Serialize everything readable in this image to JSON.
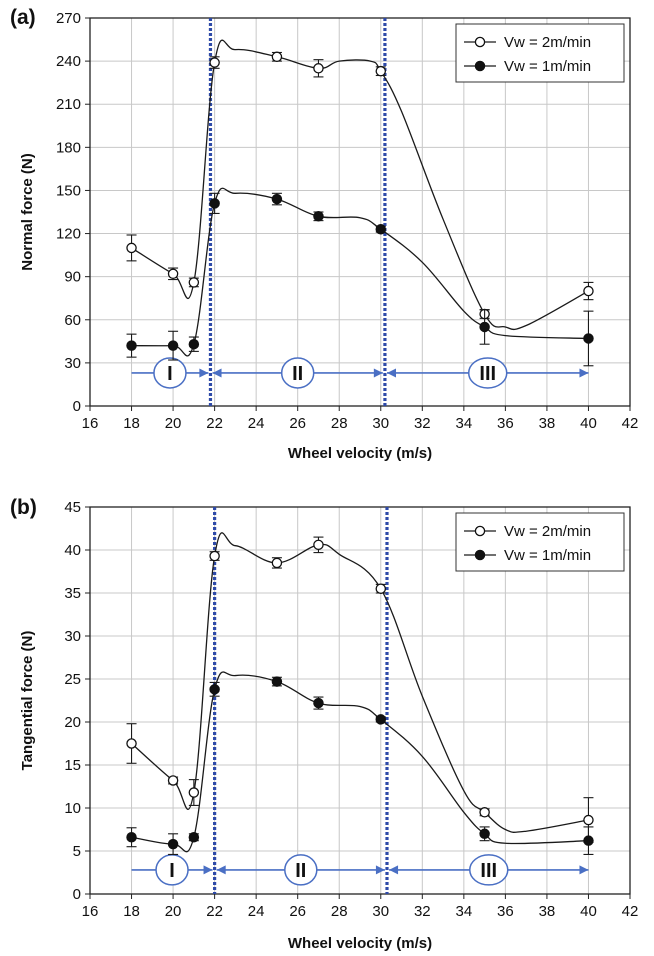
{
  "chart_data": [
    {
      "type": "line",
      "panel_label": "(a)",
      "xlabel": "Wheel velocity (m/s)",
      "ylabel": "Normal force (N)",
      "xlim": [
        16,
        42
      ],
      "ylim": [
        0,
        270
      ],
      "xticks": [
        16,
        18,
        20,
        22,
        24,
        26,
        28,
        30,
        32,
        34,
        36,
        38,
        40,
        42
      ],
      "yticks": [
        0,
        30,
        60,
        90,
        120,
        150,
        180,
        210,
        240,
        270
      ],
      "grid": true,
      "legend_position": "top-right",
      "series": [
        {
          "name": "Vw = 2m/min",
          "marker": "open-circle",
          "points": [
            {
              "x": 18,
              "y": 110,
              "err": 9
            },
            {
              "x": 20,
              "y": 92,
              "err": 4
            },
            {
              "x": 21,
              "y": 86,
              "err": 3
            },
            {
              "x": 22,
              "y": 239,
              "err": 4
            },
            {
              "x": 25,
              "y": 243,
              "err": 3
            },
            {
              "x": 27,
              "y": 235,
              "err": 6
            },
            {
              "x": 30,
              "y": 233,
              "err": 3
            },
            {
              "x": 35,
              "y": 64,
              "err": 3
            },
            {
              "x": 40,
              "y": 80,
              "err": 6
            }
          ],
          "curve": [
            [
              18,
              110
            ],
            [
              20,
              92
            ],
            [
              21,
              86
            ],
            [
              22,
              239
            ],
            [
              23,
              248
            ],
            [
              25,
              243
            ],
            [
              27,
              235
            ],
            [
              28,
              240
            ],
            [
              29.5,
              240
            ],
            [
              30,
              233
            ],
            [
              31,
              205
            ],
            [
              33,
              130
            ],
            [
              35,
              64
            ],
            [
              36,
              55
            ],
            [
              37,
              56
            ],
            [
              40,
              80
            ]
          ]
        },
        {
          "name": "Vw = 1m/min",
          "marker": "filled-circle",
          "points": [
            {
              "x": 18,
              "y": 42,
              "err": 8
            },
            {
              "x": 20,
              "y": 42,
              "err": 10
            },
            {
              "x": 21,
              "y": 43,
              "err": 5
            },
            {
              "x": 22,
              "y": 141,
              "err": 7
            },
            {
              "x": 25,
              "y": 144,
              "err": 4
            },
            {
              "x": 27,
              "y": 132,
              "err": 3
            },
            {
              "x": 30,
              "y": 123,
              "err": 2
            },
            {
              "x": 35,
              "y": 55,
              "err": 12
            },
            {
              "x": 40,
              "y": 47,
              "err": 19
            }
          ],
          "curve": [
            [
              18,
              42
            ],
            [
              20,
              42
            ],
            [
              21,
              43
            ],
            [
              22,
              141
            ],
            [
              23,
              148
            ],
            [
              25,
              144
            ],
            [
              27,
              132
            ],
            [
              29,
              131
            ],
            [
              30,
              123
            ],
            [
              32,
              100
            ],
            [
              34,
              66
            ],
            [
              35,
              55
            ],
            [
              36,
              49
            ],
            [
              40,
              47
            ]
          ]
        }
      ],
      "vlines": [
        21.8,
        30.2
      ],
      "regions": [
        {
          "label": "I",
          "x_start": 18,
          "x_end": 21.7
        },
        {
          "label": "II",
          "x_start": 21.9,
          "x_end": 30.1
        },
        {
          "label": "III",
          "x_start": 30.3,
          "x_end": 40
        }
      ],
      "region_arrow_y": 23
    },
    {
      "type": "line",
      "panel_label": "(b)",
      "xlabel": "Wheel velocity (m/s)",
      "ylabel": "Tangential force (N)",
      "xlim": [
        16,
        42
      ],
      "ylim": [
        0,
        45
      ],
      "xticks": [
        16,
        18,
        20,
        22,
        24,
        26,
        28,
        30,
        32,
        34,
        36,
        38,
        40,
        42
      ],
      "yticks": [
        0,
        5,
        10,
        15,
        20,
        25,
        30,
        35,
        40,
        45
      ],
      "grid": true,
      "legend_position": "top-right",
      "series": [
        {
          "name": "Vw = 2m/min",
          "marker": "open-circle",
          "points": [
            {
              "x": 18,
              "y": 17.5,
              "err": 2.3
            },
            {
              "x": 20,
              "y": 13.2,
              "err": 0.4
            },
            {
              "x": 21,
              "y": 11.8,
              "err": 1.5
            },
            {
              "x": 22,
              "y": 39.3,
              "err": 0.5
            },
            {
              "x": 25,
              "y": 38.5,
              "err": 0.6
            },
            {
              "x": 27,
              "y": 40.6,
              "err": 0.9
            },
            {
              "x": 30,
              "y": 35.5,
              "err": 0.5
            },
            {
              "x": 35,
              "y": 9.5,
              "err": 0.4
            },
            {
              "x": 40,
              "y": 8.6,
              "err": 2.6
            }
          ],
          "curve": [
            [
              18,
              17.5
            ],
            [
              20,
              13.2
            ],
            [
              21,
              11.8
            ],
            [
              22,
              39.3
            ],
            [
              23,
              40.5
            ],
            [
              25,
              38.5
            ],
            [
              27,
              40.6
            ],
            [
              28,
              39.5
            ],
            [
              30,
              35.5
            ],
            [
              32,
              23
            ],
            [
              34,
              12
            ],
            [
              35,
              9.5
            ],
            [
              36,
              7.5
            ],
            [
              37,
              7.3
            ],
            [
              40,
              8.6
            ]
          ]
        },
        {
          "name": "Vw = 1m/min",
          "marker": "filled-circle",
          "points": [
            {
              "x": 18,
              "y": 6.6,
              "err": 1.1
            },
            {
              "x": 20,
              "y": 5.8,
              "err": 1.2
            },
            {
              "x": 21,
              "y": 6.6,
              "err": 0.4
            },
            {
              "x": 22,
              "y": 23.8,
              "err": 0.8
            },
            {
              "x": 25,
              "y": 24.7,
              "err": 0.5
            },
            {
              "x": 27,
              "y": 22.2,
              "err": 0.7
            },
            {
              "x": 30,
              "y": 20.3,
              "err": 0.3
            },
            {
              "x": 35,
              "y": 7.0,
              "err": 0.8
            },
            {
              "x": 40,
              "y": 6.2,
              "err": 1.6
            }
          ],
          "curve": [
            [
              18,
              6.6
            ],
            [
              20,
              5.8
            ],
            [
              21,
              6.6
            ],
            [
              22,
              23.8
            ],
            [
              23,
              25.4
            ],
            [
              25,
              24.7
            ],
            [
              27,
              22.2
            ],
            [
              29,
              21.8
            ],
            [
              30,
              20.3
            ],
            [
              32,
              16
            ],
            [
              34,
              9.5
            ],
            [
              35,
              7.0
            ],
            [
              36,
              5.9
            ],
            [
              40,
              6.2
            ]
          ]
        }
      ],
      "vlines": [
        22.0,
        30.3
      ],
      "regions": [
        {
          "label": "I",
          "x_start": 18,
          "x_end": 21.9
        },
        {
          "label": "II",
          "x_start": 22.1,
          "x_end": 30.2
        },
        {
          "label": "III",
          "x_start": 30.4,
          "x_end": 40
        }
      ],
      "region_arrow_y": 2.8
    }
  ],
  "colors": {
    "axis": "#222222",
    "grid": "#c8c8c8",
    "series_line": "#1a1a1a",
    "vline": "#2e4aa8",
    "region_arrow": "#4a6fc4",
    "region_circle": "#4a6fc4"
  }
}
